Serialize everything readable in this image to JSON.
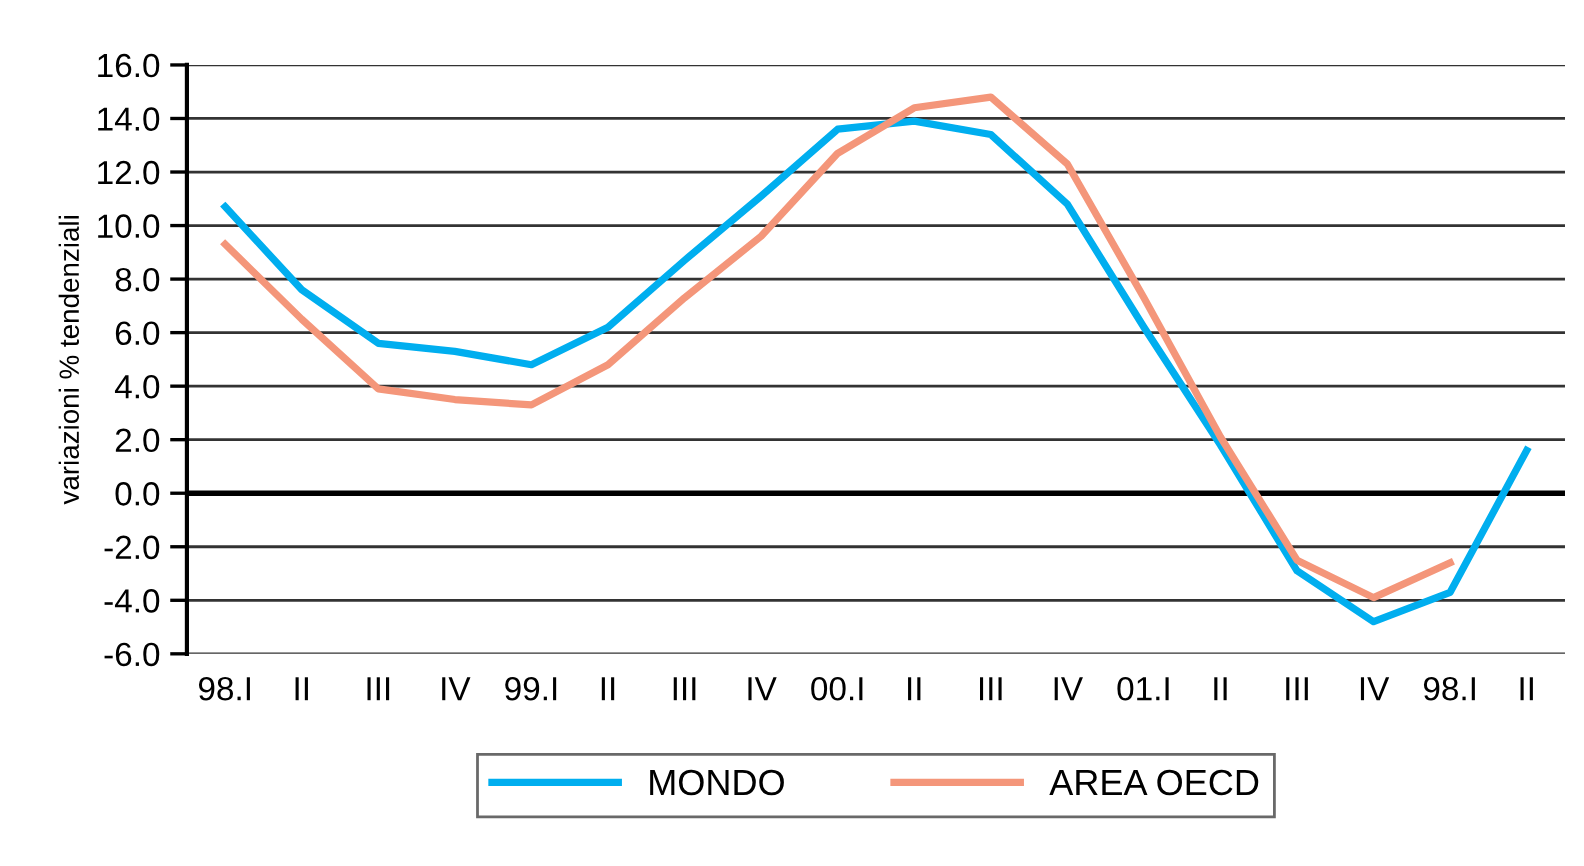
{
  "chart_data": {
    "type": "line",
    "ylabel": "variazioni % tendenziali",
    "categories": [
      "98.I",
      "II",
      "III",
      "IV",
      "99.I",
      "II",
      "III",
      "IV",
      "00.I",
      "II",
      "III",
      "IV",
      "01.I",
      "II",
      "III",
      "IV",
      "98.I",
      "II"
    ],
    "series": [
      {
        "name": "MONDO",
        "color": "#00aeef",
        "values": [
          10.7,
          7.6,
          5.6,
          5.3,
          4.8,
          6.2,
          8.7,
          11.1,
          13.6,
          13.9,
          13.4,
          10.8,
          6.2,
          1.8,
          -2.9,
          -4.8,
          -3.7,
          1.6
        ]
      },
      {
        "name": "AREA OECD",
        "color": "#f4967a",
        "values": [
          9.3,
          6.5,
          3.9,
          3.5,
          3.3,
          4.8,
          7.3,
          9.6,
          12.7,
          14.4,
          14.8,
          12.3,
          7.3,
          2.1,
          -2.5,
          -3.9,
          -2.6,
          null
        ]
      }
    ],
    "ylim": [
      -6,
      16
    ],
    "yticks": [
      {
        "value": -6,
        "label": "-6.0"
      },
      {
        "value": -4,
        "label": "-4.0"
      },
      {
        "value": -2,
        "label": "-2.0"
      },
      {
        "value": 0,
        "label": "0.0"
      },
      {
        "value": 2,
        "label": "2.0"
      },
      {
        "value": 4,
        "label": "4.0"
      },
      {
        "value": 6,
        "label": "6.0"
      },
      {
        "value": 8,
        "label": "8.0"
      },
      {
        "value": 10,
        "label": "10.0"
      },
      {
        "value": 12,
        "label": "12.0"
      },
      {
        "value": 14,
        "label": "14.0"
      },
      {
        "value": 16,
        "label": "16.0"
      }
    ],
    "grid": "y",
    "legend": "bottom",
    "marker": "none",
    "line_style": "solid"
  }
}
